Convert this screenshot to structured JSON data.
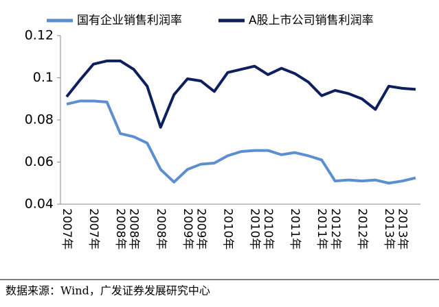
{
  "chart_data": {
    "type": "line",
    "categories": [
      "2007年",
      null,
      "2007年",
      null,
      "2008年",
      "2008年",
      null,
      "2008年",
      null,
      "2009年",
      "2009年",
      null,
      "2010年",
      null,
      "2010年",
      "2010年",
      null,
      "2011年",
      null,
      "2011年",
      "2012年",
      null,
      "2012年",
      null,
      "2013年",
      "2013年",
      null
    ],
    "series": [
      {
        "name": "国有企业销售利润率",
        "color": "#5b8fd0",
        "values": [
          0.0875,
          0.089,
          0.089,
          0.0885,
          0.0735,
          0.072,
          0.069,
          0.0565,
          0.0505,
          0.0565,
          0.059,
          0.0595,
          0.063,
          0.065,
          0.0655,
          0.0655,
          0.0635,
          0.0645,
          0.063,
          0.061,
          0.051,
          0.0515,
          0.051,
          0.0515,
          0.05,
          0.051,
          0.0525
        ]
      },
      {
        "name": "A股上市公司销售利润率",
        "color": "#0d1f5c",
        "values": [
          0.091,
          0.099,
          0.1065,
          0.108,
          0.108,
          0.104,
          0.096,
          0.0765,
          0.092,
          0.0995,
          0.0985,
          0.0935,
          0.1025,
          0.104,
          0.1055,
          0.1015,
          0.1045,
          0.102,
          0.098,
          0.0915,
          0.094,
          0.0925,
          0.09,
          0.085,
          0.096,
          0.095,
          0.0945
        ]
      }
    ],
    "ylim": [
      0.04,
      0.12
    ],
    "yticks": [
      0.04,
      0.06,
      0.08,
      0.1,
      0.12
    ],
    "source": "数据来源：Wind，广发证券发展研究中心"
  }
}
